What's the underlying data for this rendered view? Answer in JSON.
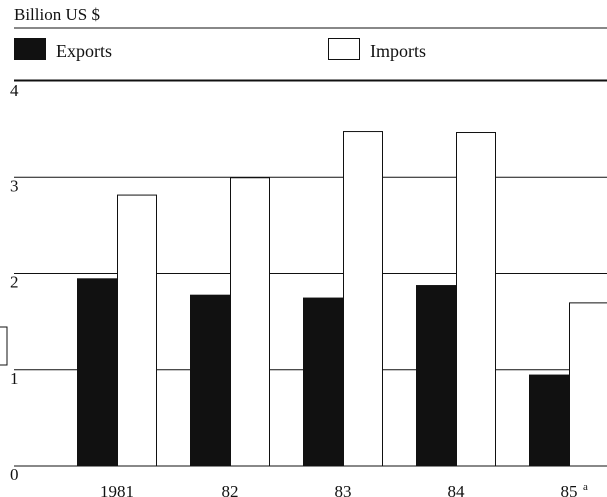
{
  "chart_data": {
    "type": "bar",
    "unit_label": "Billion US $",
    "categories": [
      "1981",
      "82",
      "83",
      "84",
      "85"
    ],
    "category_note": {
      "index": 4,
      "text": "a"
    },
    "series": [
      {
        "name": "Exports",
        "values": [
          1.95,
          1.78,
          1.75,
          1.88,
          0.95
        ],
        "style": "solid"
      },
      {
        "name": "Imports",
        "values": [
          2.82,
          3.0,
          3.48,
          3.47,
          1.7
        ],
        "style": "outline"
      }
    ],
    "ylim": [
      0,
      4
    ],
    "yticks": [
      0,
      1,
      2,
      3,
      4
    ],
    "grid": true,
    "legend_position": "top",
    "colors": {
      "exports": "#111111",
      "imports": "#ffffff",
      "stroke": "#111111"
    }
  }
}
